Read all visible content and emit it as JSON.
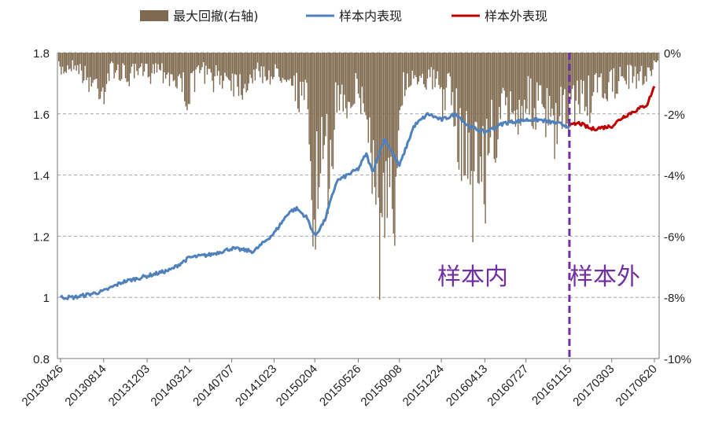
{
  "chart_data": {
    "type": "line",
    "title": "",
    "xlabel": "",
    "ylabel": "",
    "ylim": [
      0.8,
      1.8
    ],
    "y_ticks": [
      "1.8",
      "1.6",
      "1.4",
      "1.2",
      "1",
      "0.8"
    ],
    "y2lim": [
      -10,
      0
    ],
    "y2_ticks": [
      "0%",
      "-2%",
      "-4%",
      "-6%",
      "-8%",
      "-10%"
    ],
    "x_ticks": [
      "20130426",
      "20130814",
      "20131203",
      "20140321",
      "20140707",
      "20141023",
      "20150204",
      "20150526",
      "20150908",
      "20151224",
      "20160413",
      "20160727",
      "20161115",
      "20170303",
      "20170620"
    ],
    "grid": true,
    "legend_position": "top",
    "split_date": "20161115",
    "region_labels": {
      "in_sample": "样本内",
      "out_sample": "样本外"
    },
    "colors": {
      "drawdown": "#7f6a4f",
      "in_sample": "#4f81bd",
      "out_sample": "#c00000",
      "split": "#7030a0",
      "grid": "#a6a6a6"
    },
    "series": [
      {
        "name": "样本内表现",
        "axis": "left",
        "x": [
          "20130426",
          "20130601",
          "20130814",
          "20131001",
          "20131203",
          "20140201",
          "20140321",
          "20140515",
          "20140707",
          "20140901",
          "20141023",
          "20141201",
          "20141220",
          "20150115",
          "20150204",
          "20150301",
          "20150401",
          "20150526",
          "20150615",
          "20150701",
          "20150801",
          "20150908",
          "20151015",
          "20151120",
          "20151224",
          "20160201",
          "20160301",
          "20160413",
          "20160601",
          "20160727",
          "20160901",
          "20161010",
          "20161115"
        ],
        "values": [
          1.0,
          1.0,
          1.02,
          1.05,
          1.07,
          1.09,
          1.13,
          1.14,
          1.16,
          1.15,
          1.21,
          1.28,
          1.29,
          1.26,
          1.2,
          1.25,
          1.38,
          1.42,
          1.47,
          1.41,
          1.52,
          1.43,
          1.56,
          1.6,
          1.58,
          1.6,
          1.56,
          1.54,
          1.57,
          1.58,
          1.58,
          1.57,
          1.56
        ]
      },
      {
        "name": "样本外表现",
        "axis": "left",
        "x": [
          "20161115",
          "20161210",
          "20170110",
          "20170303",
          "20170401",
          "20170501",
          "20170601",
          "20170620"
        ],
        "values": [
          1.56,
          1.57,
          1.55,
          1.56,
          1.59,
          1.61,
          1.63,
          1.69
        ]
      },
      {
        "name": "最大回撤(右轴)",
        "axis": "right",
        "type": "bar",
        "x": [
          "20130426",
          "20130601",
          "20130701",
          "20130814",
          "20130901",
          "20131015",
          "20131203",
          "20140101",
          "20140201",
          "20140321",
          "20140415",
          "20140515",
          "20140707",
          "20140801",
          "20140901",
          "20141023",
          "20141201",
          "20141220",
          "20150115",
          "20150204",
          "20150220",
          "20150301",
          "20150401",
          "20150526",
          "20150615",
          "20150701",
          "20150715",
          "20150801",
          "20150825",
          "20150908",
          "20151015",
          "20151120",
          "20151224",
          "20160115",
          "20160201",
          "20160301",
          "20160413",
          "20160501",
          "20160601",
          "20160727",
          "20160901",
          "20161010",
          "20161115",
          "20161210",
          "20170110",
          "20170201",
          "20170303",
          "20170401",
          "20170501",
          "20170601",
          "20170620"
        ],
        "values": [
          -0.8,
          -0.5,
          -1.2,
          -1.6,
          -0.7,
          -1.1,
          -0.8,
          -0.6,
          -1.0,
          -1.9,
          -0.6,
          -1.2,
          -1.0,
          -1.5,
          -0.9,
          -1.0,
          -0.9,
          -1.7,
          -2.4,
          -6.8,
          -5.2,
          -6.3,
          -2.0,
          -1.7,
          -2.9,
          -4.6,
          -7.9,
          -8.6,
          -7.2,
          -1.7,
          -0.9,
          -1.1,
          -1.7,
          -1.8,
          -3.4,
          -4.6,
          -5.1,
          -3.7,
          -2.8,
          -2.1,
          -2.6,
          -3.5,
          -2.5,
          -1.9,
          -2.2,
          -1.6,
          -1.5,
          -1.0,
          -1.2,
          -0.9,
          -0.4
        ]
      }
    ]
  }
}
